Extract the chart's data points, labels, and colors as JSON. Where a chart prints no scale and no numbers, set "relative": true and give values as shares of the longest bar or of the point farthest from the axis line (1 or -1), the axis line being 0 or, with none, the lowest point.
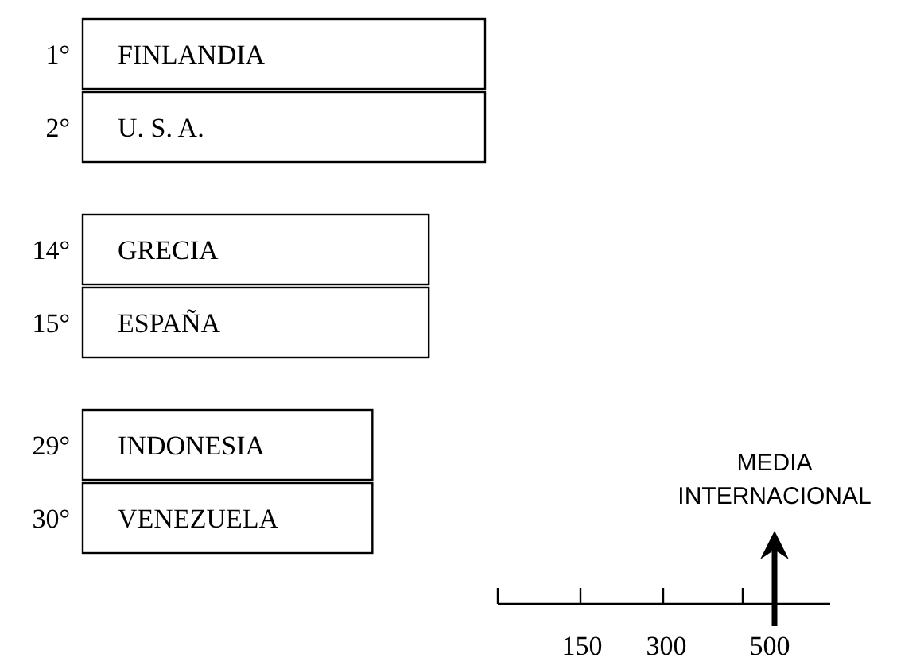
{
  "chart_data": [
    {
      "type": "bar",
      "orientation": "horizontal",
      "relative": true,
      "categories": [
        "FINLANDIA",
        "U. S. A.",
        null,
        "GRECIA",
        "ESPAÑA",
        null,
        "INDONESIA",
        "VENEZUELA"
      ],
      "values": [
        1,
        1,
        null,
        0.86,
        0.86,
        null,
        0.72,
        0.72
      ],
      "color": "#ffffff",
      "annotations": [
        "1°",
        "2°",
        "14°",
        "15°",
        "29°",
        "30°"
      ]
    },
    {
      "type": "other",
      "annotations": [
        "MEDIA INTERNACIONAL",
        "150",
        "300",
        "500"
      ]
    }
  ]
}
